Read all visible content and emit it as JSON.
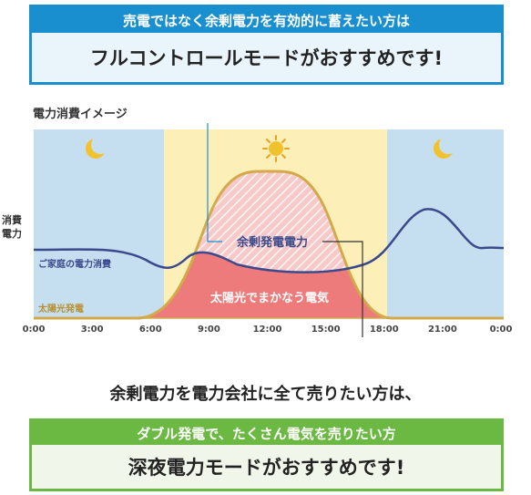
{
  "top_banner": {
    "header": "売電ではなく余剰電力を有効的に蓄えたい方は",
    "body": "フルコントロールモードがおすすめです!"
  },
  "graph": {
    "title": "電力消費イメージ",
    "y_label_line1": "消費",
    "y_label_line2": "電力",
    "time_ticks": [
      "0:00",
      "3:00",
      "6:00",
      "9:00",
      "12:00",
      "15:00",
      "18:00",
      "21:00",
      "0:00"
    ],
    "labels": {
      "surplus": "余剰発電電力",
      "household": "ご家庭の電力消費",
      "solar": "太陽光発電",
      "covered": "太陽光でまかなう電気"
    },
    "icons": {
      "night": "moon-icon",
      "day": "sun-icon"
    },
    "colors": {
      "night_bg": "#c5dff0",
      "day_bg": "#fcefb8",
      "solar_curve": "#d3a94a",
      "household_curve": "#3b4a8c",
      "covered_fill": "#ee7b7b",
      "surplus_fill": "#f8c9c9",
      "leader_line": "#1a8fd0"
    }
  },
  "chart_data": {
    "type": "area",
    "x": [
      "0:00",
      "3:00",
      "6:00",
      "9:00",
      "12:00",
      "15:00",
      "18:00",
      "21:00",
      "0:00"
    ],
    "series": [
      {
        "name": "ご家庭の電力消費",
        "type": "line"
      },
      {
        "name": "太陽光発電",
        "type": "area"
      }
    ]
  },
  "sell_text": "余剰電力を電力会社に全て売りたい方は、",
  "bottom_banner": {
    "header": "ダブル発電で、たくさん電気を売りたい方",
    "body": "深夜電力モードがおすすめです!"
  }
}
